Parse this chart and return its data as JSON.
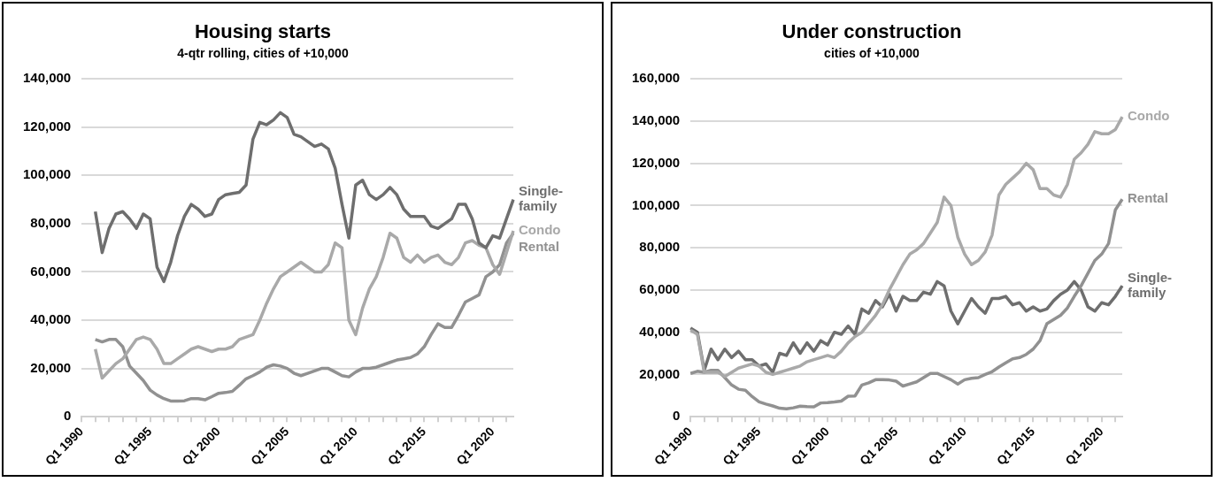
{
  "chart_data": [
    {
      "type": "line",
      "title": "Housing starts",
      "subtitle": "4-qtr rolling, cities of +10,000",
      "categories": [
        "Q1 1990",
        null,
        null,
        null,
        null,
        null,
        null,
        null,
        null,
        null,
        "Q1 1995",
        null,
        null,
        null,
        null,
        null,
        null,
        null,
        null,
        null,
        "Q1 2000",
        null,
        null,
        null,
        null,
        null,
        null,
        null,
        null,
        null,
        "Q1 2005",
        null,
        null,
        null,
        null,
        null,
        null,
        null,
        null,
        null,
        "Q1 2010",
        null,
        null,
        null,
        null,
        null,
        null,
        null,
        null,
        null,
        "Q1 2015",
        null,
        null,
        null,
        null,
        null,
        null,
        null,
        null,
        null,
        "Q1 2020",
        null,
        null,
        null
      ],
      "ylim": [
        0,
        140000
      ],
      "yticks": [
        0,
        {
          "value": 20000,
          "label": "20,000"
        },
        {
          "value": 40000,
          "label": "40,000"
        },
        {
          "value": 60000,
          "label": "60,000"
        },
        {
          "value": 80000,
          "label": "80,000"
        },
        {
          "value": 100000,
          "label": "100,000"
        },
        {
          "value": 120000,
          "label": "120,000"
        },
        {
          "value": 140000,
          "label": "140,000"
        }
      ],
      "grid": "y",
      "legend": false,
      "series": [
        {
          "name": "Single-family",
          "color": "#6e6e6e",
          "values": [
            null,
            null,
            85000,
            68000,
            78000,
            84000,
            85000,
            82000,
            78000,
            84000,
            82000,
            62000,
            56000,
            64000,
            75000,
            83000,
            88000,
            86000,
            83000,
            84000,
            90000,
            92000,
            92500,
            93000,
            96000,
            115000,
            122000,
            121000,
            123000,
            126000,
            124000,
            117000,
            116000,
            114000,
            112000,
            113000,
            111000,
            103000,
            88000,
            74000,
            96000,
            98000,
            92000,
            90000,
            92000,
            95000,
            92000,
            86000,
            83000,
            83000,
            83000,
            79000,
            78000,
            80000,
            82000,
            88000,
            88000,
            82000,
            72000,
            70000,
            75000,
            74000,
            82000,
            90000
          ]
        },
        {
          "name": "Condo",
          "color": "#a9a9a9",
          "values": [
            null,
            null,
            28000,
            16000,
            19000,
            22000,
            24000,
            28000,
            32000,
            33000,
            32000,
            28000,
            22000,
            22000,
            24000,
            26000,
            28000,
            29000,
            28000,
            27000,
            28000,
            28000,
            29000,
            32000,
            33000,
            34000,
            40000,
            47000,
            53000,
            58000,
            60000,
            62000,
            64000,
            62000,
            60000,
            60000,
            63000,
            72000,
            70000,
            40000,
            34000,
            45000,
            53000,
            58000,
            66000,
            76000,
            74000,
            66000,
            64000,
            67000,
            64000,
            66000,
            67000,
            64000,
            63000,
            66000,
            72000,
            73000,
            71000,
            70000,
            63000,
            59000,
            68000,
            77000
          ]
        },
        {
          "name": "Rental",
          "color": "#919191",
          "values": [
            null,
            null,
            32000,
            31000,
            32000,
            32000,
            29000,
            21000,
            18000,
            15000,
            11000,
            9000,
            7500,
            6500,
            6500,
            6600,
            7500,
            7500,
            7000,
            8300,
            9700,
            10000,
            10500,
            13000,
            15700,
            17000,
            18500,
            20500,
            21500,
            21000,
            20000,
            18000,
            17000,
            18000,
            19000,
            20000,
            20000,
            18500,
            17000,
            16500,
            18500,
            20000,
            20000,
            20500,
            21500,
            22500,
            23500,
            24000,
            24500,
            26000,
            29000,
            34000,
            38500,
            37000,
            37000,
            42000,
            47500,
            49000,
            50500,
            58000,
            60000,
            63000,
            72000,
            76000
          ]
        }
      ]
    },
    {
      "type": "line",
      "title": "Under construction",
      "subtitle": "cities of +10,000",
      "categories": [
        "Q1 1990",
        null,
        null,
        null,
        null,
        null,
        null,
        null,
        null,
        null,
        "Q1 1995",
        null,
        null,
        null,
        null,
        null,
        null,
        null,
        null,
        null,
        "Q1 2000",
        null,
        null,
        null,
        null,
        null,
        null,
        null,
        null,
        null,
        "Q1 2005",
        null,
        null,
        null,
        null,
        null,
        null,
        null,
        null,
        null,
        "Q1 2010",
        null,
        null,
        null,
        null,
        null,
        null,
        null,
        null,
        null,
        "Q1 2015",
        null,
        null,
        null,
        null,
        null,
        null,
        null,
        null,
        null,
        "Q1 2020",
        null,
        null,
        null
      ],
      "ylim": [
        0,
        160000
      ],
      "yticks": [
        0,
        {
          "value": 20000,
          "label": "20,000"
        },
        {
          "value": 40000,
          "label": "40,000"
        },
        {
          "value": 60000,
          "label": "60,000"
        },
        {
          "value": 80000,
          "label": "80,000"
        },
        {
          "value": 100000,
          "label": "100,000"
        },
        {
          "value": 120000,
          "label": "120,000"
        },
        {
          "value": 140000,
          "label": "140,000"
        },
        {
          "value": 160000,
          "label": "160,000"
        }
      ],
      "grid": "y",
      "legend": false,
      "series": [
        {
          "name": "Condo",
          "color": "#a9a9a9",
          "values": [
            41000,
            39000,
            21000,
            21000,
            21000,
            19000,
            21000,
            23000,
            24000,
            25000,
            24000,
            21000,
            20000,
            21000,
            22000,
            23000,
            24000,
            26000,
            27000,
            28000,
            29000,
            28000,
            31000,
            35000,
            38000,
            40000,
            44000,
            48000,
            53000,
            60000,
            66000,
            72000,
            77000,
            79000,
            82000,
            87000,
            92000,
            104000,
            100000,
            85000,
            77000,
            72000,
            74000,
            78000,
            86000,
            105000,
            110000,
            113000,
            116000,
            120000,
            117000,
            108000,
            108000,
            105000,
            104000,
            110000,
            122000,
            125000,
            129000,
            135000,
            134000,
            134000,
            136000,
            142000
          ]
        },
        {
          "name": "Rental",
          "color": "#919191",
          "values": [
            20500,
            21500,
            21000,
            22000,
            22000,
            18500,
            15000,
            13000,
            12500,
            9500,
            7000,
            6000,
            5100,
            4000,
            3700,
            4200,
            5000,
            4800,
            4700,
            6500,
            6700,
            7000,
            7400,
            9700,
            9800,
            15000,
            16000,
            17500,
            17500,
            17400,
            16800,
            14500,
            15500,
            16500,
            18500,
            20500,
            20500,
            19000,
            17500,
            15500,
            17500,
            18200,
            18500,
            20000,
            21300,
            23500,
            25500,
            27400,
            28000,
            29500,
            32000,
            36000,
            44000,
            46000,
            48000,
            51500,
            57000,
            62000,
            68000,
            74000,
            77000,
            82000,
            98000,
            103000
          ]
        },
        {
          "name": "Single-family",
          "color": "#6e6e6e",
          "values": [
            42000,
            40000,
            22000,
            32000,
            27000,
            32000,
            28000,
            31000,
            27000,
            27000,
            24000,
            25000,
            21000,
            30000,
            29000,
            35000,
            30000,
            35000,
            31000,
            36000,
            34000,
            40000,
            39000,
            43000,
            39000,
            51000,
            49000,
            55000,
            52000,
            58000,
            50000,
            57000,
            55000,
            55000,
            59000,
            58000,
            64000,
            62000,
            50000,
            44000,
            50000,
            56000,
            52000,
            49000,
            56000,
            56000,
            57000,
            53000,
            54000,
            50000,
            52000,
            50000,
            51000,
            55000,
            58000,
            60000,
            64000,
            60000,
            52000,
            50000,
            54000,
            53000,
            57000,
            62000
          ]
        }
      ]
    }
  ]
}
